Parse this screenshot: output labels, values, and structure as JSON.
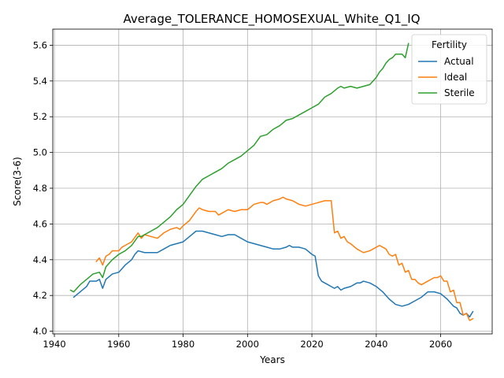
{
  "chart_data": {
    "type": "line",
    "title": "Average_TOLERANCE_HOMOSEXUAL_White_Q1_IQ",
    "xlabel": "Years",
    "ylabel": "Score(3-6)",
    "xlim": [
      1939.5,
      2076
    ],
    "ylim": [
      3.985,
      5.69
    ],
    "xticks": [
      1940,
      1960,
      1980,
      2000,
      2020,
      2040,
      2060
    ],
    "yticks": [
      4.0,
      4.2,
      4.4,
      4.6,
      4.8,
      5.0,
      5.2,
      5.4,
      5.6
    ],
    "ytick_labels": [
      "4.0",
      "4.2",
      "4.4",
      "4.6",
      "4.8",
      "5.0",
      "5.2",
      "5.4",
      "5.6"
    ],
    "grid": true,
    "legend": {
      "title": "Fertility",
      "placement": "top-right"
    },
    "series": [
      {
        "name": "Actual",
        "color": "#1f77b4",
        "x": [
          1946,
          1948,
          1950,
          1951,
          1953,
          1954,
          1955,
          1956,
          1958,
          1960,
          1962,
          1964,
          1965,
          1966,
          1968,
          1970,
          1972,
          1974,
          1976,
          1978,
          1980,
          1982,
          1984,
          1986,
          1988,
          1990,
          1992,
          1994,
          1996,
          1998,
          2000,
          2002,
          2004,
          2006,
          2008,
          2010,
          2012,
          2013,
          2014,
          2016,
          2018,
          2020,
          2021,
          2022,
          2023,
          2025,
          2026,
          2027,
          2028,
          2029,
          2030,
          2032,
          2034,
          2035,
          2036,
          2038,
          2040,
          2042,
          2044,
          2046,
          2048,
          2050,
          2052,
          2054,
          2056,
          2058,
          2060,
          2062,
          2064,
          2065,
          2066,
          2067,
          2068,
          2069,
          2070
        ],
        "y": [
          4.19,
          4.22,
          4.25,
          4.28,
          4.28,
          4.29,
          4.24,
          4.29,
          4.32,
          4.33,
          4.37,
          4.4,
          4.43,
          4.45,
          4.44,
          4.44,
          4.44,
          4.46,
          4.48,
          4.49,
          4.5,
          4.53,
          4.56,
          4.56,
          4.55,
          4.54,
          4.53,
          4.54,
          4.54,
          4.52,
          4.5,
          4.49,
          4.48,
          4.47,
          4.46,
          4.46,
          4.47,
          4.48,
          4.47,
          4.47,
          4.46,
          4.43,
          4.42,
          4.31,
          4.28,
          4.26,
          4.25,
          4.24,
          4.25,
          4.23,
          4.24,
          4.25,
          4.27,
          4.27,
          4.28,
          4.27,
          4.25,
          4.22,
          4.18,
          4.15,
          4.14,
          4.15,
          4.17,
          4.19,
          4.22,
          4.22,
          4.21,
          4.18,
          4.14,
          4.13,
          4.1,
          4.09,
          4.1,
          4.08,
          4.11
        ]
      },
      {
        "name": "Ideal",
        "color": "#ff7f0e",
        "x": [
          1953,
          1954,
          1955,
          1956,
          1957,
          1958,
          1960,
          1961,
          1962,
          1964,
          1966,
          1967,
          1968,
          1970,
          1972,
          1974,
          1976,
          1978,
          1979,
          1980,
          1982,
          1984,
          1985,
          1986,
          1988,
          1990,
          1991,
          1992,
          1994,
          1996,
          1998,
          2000,
          2002,
          2004,
          2005,
          2006,
          2008,
          2010,
          2011,
          2012,
          2014,
          2016,
          2018,
          2020,
          2022,
          2024,
          2026,
          2027,
          2028,
          2029,
          2030,
          2031,
          2032,
          2034,
          2036,
          2038,
          2040,
          2041,
          2042,
          2043,
          2044,
          2045,
          2046,
          2047,
          2048,
          2049,
          2050,
          2051,
          2052,
          2053,
          2054,
          2055,
          2056,
          2057,
          2058,
          2059,
          2060,
          2061,
          2062,
          2063,
          2064,
          2065,
          2066,
          2067,
          2068,
          2069,
          2070
        ],
        "y": [
          4.39,
          4.41,
          4.37,
          4.42,
          4.43,
          4.45,
          4.45,
          4.47,
          4.48,
          4.5,
          4.55,
          4.52,
          4.54,
          4.53,
          4.52,
          4.55,
          4.57,
          4.58,
          4.57,
          4.59,
          4.62,
          4.67,
          4.69,
          4.68,
          4.67,
          4.67,
          4.65,
          4.66,
          4.68,
          4.67,
          4.68,
          4.68,
          4.71,
          4.72,
          4.72,
          4.71,
          4.73,
          4.74,
          4.75,
          4.74,
          4.73,
          4.71,
          4.7,
          4.71,
          4.72,
          4.73,
          4.73,
          4.55,
          4.56,
          4.52,
          4.53,
          4.5,
          4.49,
          4.46,
          4.44,
          4.45,
          4.47,
          4.48,
          4.47,
          4.46,
          4.43,
          4.42,
          4.43,
          4.37,
          4.38,
          4.33,
          4.34,
          4.29,
          4.29,
          4.27,
          4.26,
          4.27,
          4.28,
          4.29,
          4.3,
          4.3,
          4.31,
          4.28,
          4.28,
          4.22,
          4.23,
          4.16,
          4.16,
          4.09,
          4.1,
          4.06,
          4.07
        ]
      },
      {
        "name": "Sterile",
        "color": "#2ca02c",
        "x": [
          1945,
          1946,
          1948,
          1950,
          1952,
          1954,
          1955,
          1956,
          1958,
          1960,
          1962,
          1964,
          1966,
          1967,
          1968,
          1970,
          1972,
          1974,
          1976,
          1978,
          1980,
          1982,
          1984,
          1986,
          1988,
          1990,
          1992,
          1994,
          1996,
          1998,
          2000,
          2002,
          2004,
          2006,
          2008,
          2010,
          2012,
          2014,
          2016,
          2018,
          2020,
          2022,
          2024,
          2026,
          2028,
          2029,
          2030,
          2032,
          2034,
          2036,
          2038,
          2040,
          2041,
          2042,
          2043,
          2044,
          2045,
          2046,
          2048,
          2049,
          2050
        ],
        "y": [
          4.23,
          4.22,
          4.26,
          4.29,
          4.32,
          4.33,
          4.3,
          4.36,
          4.4,
          4.43,
          4.45,
          4.48,
          4.53,
          4.53,
          4.54,
          4.56,
          4.58,
          4.61,
          4.64,
          4.68,
          4.71,
          4.76,
          4.81,
          4.85,
          4.87,
          4.89,
          4.91,
          4.94,
          4.96,
          4.98,
          5.01,
          5.04,
          5.09,
          5.1,
          5.13,
          5.15,
          5.18,
          5.19,
          5.21,
          5.23,
          5.25,
          5.27,
          5.31,
          5.33,
          5.36,
          5.37,
          5.36,
          5.37,
          5.36,
          5.37,
          5.38,
          5.42,
          5.45,
          5.47,
          5.5,
          5.52,
          5.53,
          5.55,
          5.55,
          5.53,
          5.61
        ]
      }
    ]
  }
}
